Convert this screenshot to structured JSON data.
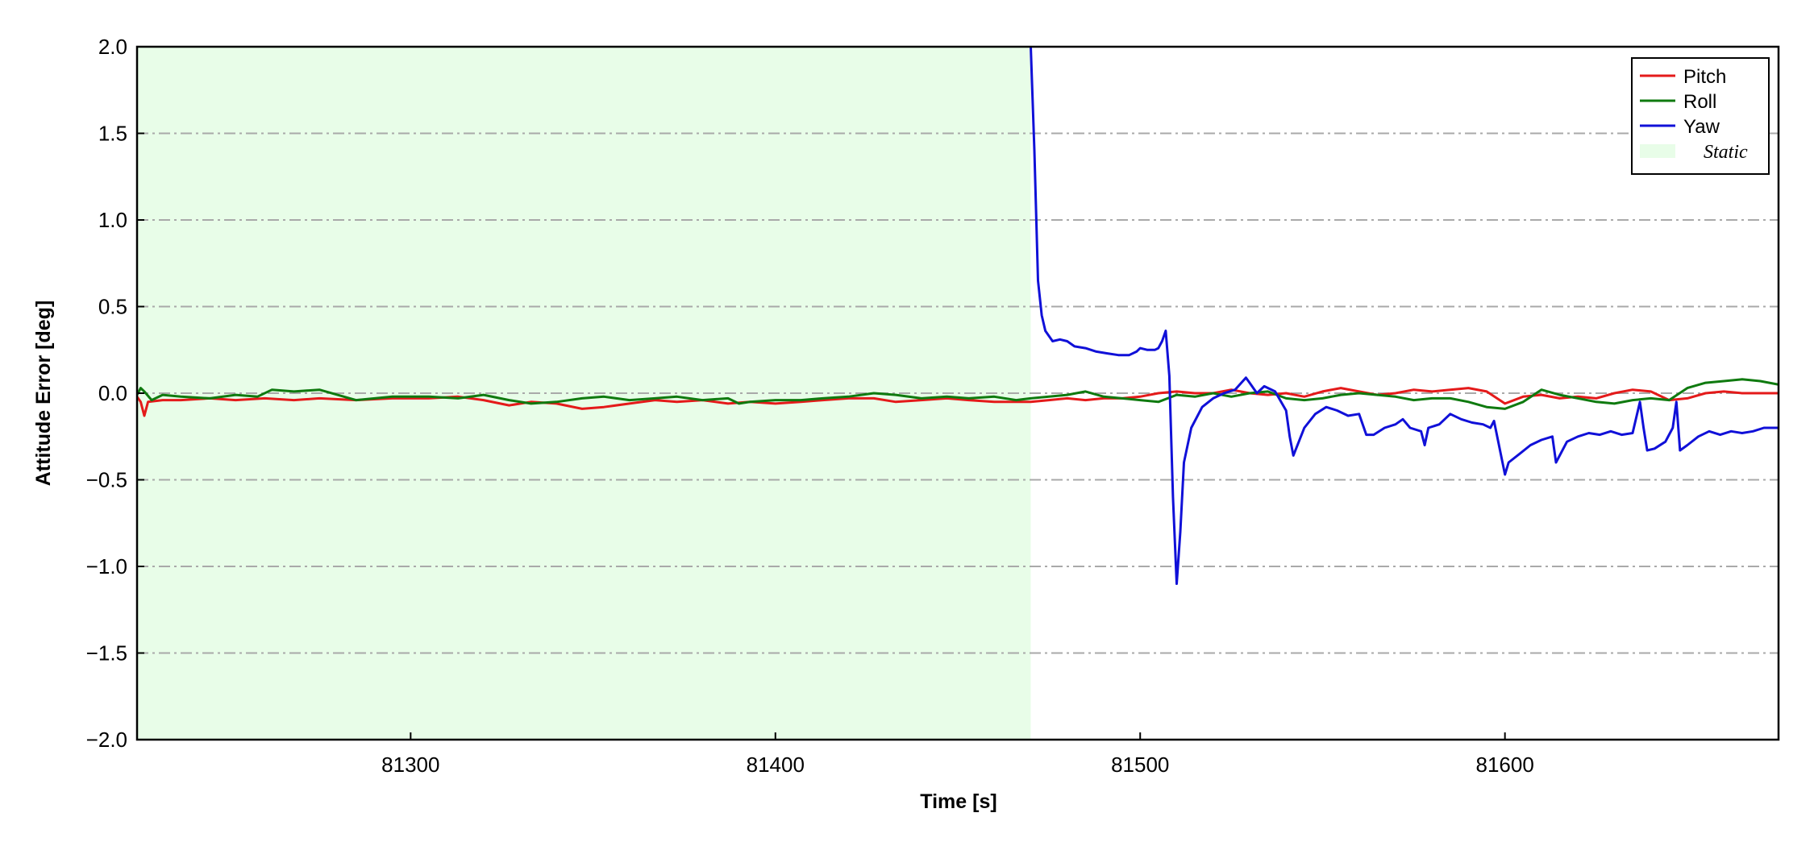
{
  "chart_data": {
    "type": "line",
    "title": "",
    "xlabel": "Time [s]",
    "ylabel": "Attitude Error [deg]",
    "xlim": [
      81225,
      81675
    ],
    "ylim": [
      -2.0,
      2.0
    ],
    "x_ticks": [
      81300,
      81400,
      81500,
      81600
    ],
    "x_tick_labels": [
      "81300",
      "81400",
      "81500",
      "81600"
    ],
    "y_ticks": [
      2.0,
      1.5,
      1.0,
      0.5,
      0.0,
      -0.5,
      -1.0,
      -1.5,
      -2.0
    ],
    "y_tick_labels": [
      "2.0",
      "1.5",
      "1.0",
      "0.5",
      "0.0",
      "−0.5",
      "−1.0",
      "−1.5",
      "−2.0"
    ],
    "grid": "horizontal dash-dot at y ticks",
    "legend_position": "top-right",
    "shaded_regions": [
      {
        "name": "Static",
        "x_start": 81225,
        "x_end": 81470,
        "color": "#e8fde8"
      }
    ],
    "series": [
      {
        "name": "Pitch",
        "color": "#e41a1a",
        "x": [
          81225,
          81226,
          81227,
          81228,
          81232,
          81237,
          81245,
          81252,
          81260,
          81268,
          81275,
          81285,
          81295,
          81305,
          81313,
          81320,
          81327,
          81333,
          81340,
          81347,
          81353,
          81360,
          81367,
          81373,
          81380,
          81387,
          81393,
          81400,
          81407,
          81413,
          81420,
          81427,
          81433,
          81440,
          81447,
          81453,
          81460,
          81466,
          81470,
          81475,
          81480,
          81485,
          81490,
          81495,
          81500,
          81505,
          81510,
          81515,
          81520,
          81525,
          81530,
          81535,
          81540,
          81545,
          81550,
          81555,
          81560,
          81565,
          81570,
          81575,
          81580,
          81585,
          81590,
          81595,
          81600,
          81605,
          81610,
          81615,
          81620,
          81625,
          81630,
          81635,
          81640,
          81645,
          81650,
          81655,
          81660,
          81665,
          81670,
          81675
        ],
        "y": [
          -0.02,
          -0.05,
          -0.13,
          -0.05,
          -0.04,
          -0.04,
          -0.03,
          -0.04,
          -0.03,
          -0.04,
          -0.03,
          -0.04,
          -0.03,
          -0.03,
          -0.02,
          -0.04,
          -0.07,
          -0.05,
          -0.06,
          -0.09,
          -0.08,
          -0.06,
          -0.04,
          -0.05,
          -0.04,
          -0.06,
          -0.05,
          -0.06,
          -0.05,
          -0.04,
          -0.03,
          -0.03,
          -0.05,
          -0.04,
          -0.03,
          -0.04,
          -0.05,
          -0.05,
          -0.05,
          -0.04,
          -0.03,
          -0.04,
          -0.03,
          -0.03,
          -0.02,
          0.0,
          0.01,
          0.0,
          0.0,
          0.02,
          0.0,
          -0.01,
          0.0,
          -0.02,
          0.01,
          0.03,
          0.01,
          -0.01,
          0.0,
          0.02,
          0.01,
          0.02,
          0.03,
          0.01,
          -0.06,
          -0.02,
          -0.01,
          -0.03,
          -0.02,
          -0.03,
          0.0,
          0.02,
          0.01,
          -0.04,
          -0.03,
          0.0,
          0.01,
          0.0,
          0.0,
          0.0
        ]
      },
      {
        "name": "Roll",
        "color": "#0f7a0f",
        "x": [
          81225,
          81226,
          81227,
          81229,
          81232,
          81237,
          81245,
          81252,
          81258,
          81262,
          81268,
          81275,
          81285,
          81295,
          81305,
          81313,
          81320,
          81327,
          81333,
          81340,
          81347,
          81353,
          81360,
          81367,
          81373,
          81380,
          81387,
          81390,
          81393,
          81400,
          81407,
          81413,
          81420,
          81427,
          81433,
          81440,
          81447,
          81453,
          81460,
          81466,
          81470,
          81475,
          81480,
          81485,
          81490,
          81495,
          81500,
          81505,
          81510,
          81515,
          81520,
          81525,
          81530,
          81535,
          81540,
          81545,
          81550,
          81555,
          81560,
          81565,
          81570,
          81575,
          81580,
          81585,
          81590,
          81595,
          81600,
          81605,
          81610,
          81615,
          81620,
          81625,
          81630,
          81635,
          81640,
          81645,
          81650,
          81655,
          81660,
          81665,
          81670,
          81675
        ],
        "y": [
          -0.01,
          0.03,
          0.01,
          -0.04,
          -0.01,
          -0.02,
          -0.03,
          -0.01,
          -0.02,
          0.02,
          0.01,
          0.02,
          -0.04,
          -0.02,
          -0.02,
          -0.03,
          -0.01,
          -0.04,
          -0.06,
          -0.05,
          -0.03,
          -0.02,
          -0.04,
          -0.03,
          -0.02,
          -0.04,
          -0.03,
          -0.06,
          -0.05,
          -0.04,
          -0.04,
          -0.03,
          -0.02,
          0.0,
          -0.01,
          -0.03,
          -0.02,
          -0.03,
          -0.02,
          -0.04,
          -0.03,
          -0.02,
          -0.01,
          0.01,
          -0.02,
          -0.03,
          -0.04,
          -0.05,
          -0.01,
          -0.02,
          0.0,
          -0.02,
          0.0,
          0.01,
          -0.03,
          -0.04,
          -0.03,
          -0.01,
          0.0,
          -0.01,
          -0.02,
          -0.04,
          -0.03,
          -0.03,
          -0.05,
          -0.08,
          -0.09,
          -0.05,
          0.02,
          -0.01,
          -0.03,
          -0.05,
          -0.06,
          -0.04,
          -0.03,
          -0.04,
          0.03,
          0.06,
          0.07,
          0.08,
          0.07,
          0.05
        ]
      },
      {
        "name": "Yaw",
        "color": "#1010d8",
        "x": [
          81470,
          81471,
          81472,
          81473,
          81474,
          81476,
          81478,
          81480,
          81482,
          81485,
          81488,
          81491,
          81494,
          81497,
          81499,
          81500,
          81502,
          81504,
          81505,
          81506,
          81507,
          81508,
          81509,
          81510,
          81511,
          81512,
          81514,
          81517,
          81520,
          81523,
          81526,
          81529,
          81530,
          81532,
          81534,
          81537,
          81540,
          81541,
          81542,
          81545,
          81548,
          81551,
          81554,
          81557,
          81560,
          81562,
          81564,
          81567,
          81570,
          81572,
          81574,
          81577,
          81578,
          81579,
          81582,
          81585,
          81588,
          81591,
          81594,
          81596,
          81597,
          81600,
          81601,
          81604,
          81607,
          81610,
          81613,
          81614,
          81617,
          81620,
          81623,
          81626,
          81629,
          81632,
          81635,
          81637,
          81638,
          81639,
          81641,
          81644,
          81646,
          81647,
          81648,
          81650,
          81653,
          81656,
          81659,
          81662,
          81665,
          81668,
          81671,
          81675
        ],
        "y": [
          2.0,
          1.4,
          0.65,
          0.45,
          0.36,
          0.3,
          0.31,
          0.3,
          0.27,
          0.26,
          0.24,
          0.23,
          0.22,
          0.22,
          0.24,
          0.26,
          0.25,
          0.25,
          0.26,
          0.3,
          0.36,
          0.1,
          -0.6,
          -1.1,
          -0.8,
          -0.4,
          -0.2,
          -0.08,
          -0.03,
          0.0,
          0.02,
          0.09,
          0.06,
          0.0,
          0.04,
          0.01,
          -0.1,
          -0.25,
          -0.36,
          -0.2,
          -0.12,
          -0.08,
          -0.1,
          -0.13,
          -0.12,
          -0.24,
          -0.24,
          -0.2,
          -0.18,
          -0.15,
          -0.2,
          -0.22,
          -0.3,
          -0.2,
          -0.18,
          -0.12,
          -0.15,
          -0.17,
          -0.18,
          -0.2,
          -0.16,
          -0.47,
          -0.4,
          -0.35,
          -0.3,
          -0.27,
          -0.25,
          -0.4,
          -0.28,
          -0.25,
          -0.23,
          -0.24,
          -0.22,
          -0.24,
          -0.23,
          -0.05,
          -0.2,
          -0.33,
          -0.32,
          -0.28,
          -0.2,
          -0.05,
          -0.33,
          -0.3,
          -0.25,
          -0.22,
          -0.24,
          -0.22,
          -0.23,
          -0.22,
          -0.2,
          -0.2
        ]
      }
    ]
  }
}
